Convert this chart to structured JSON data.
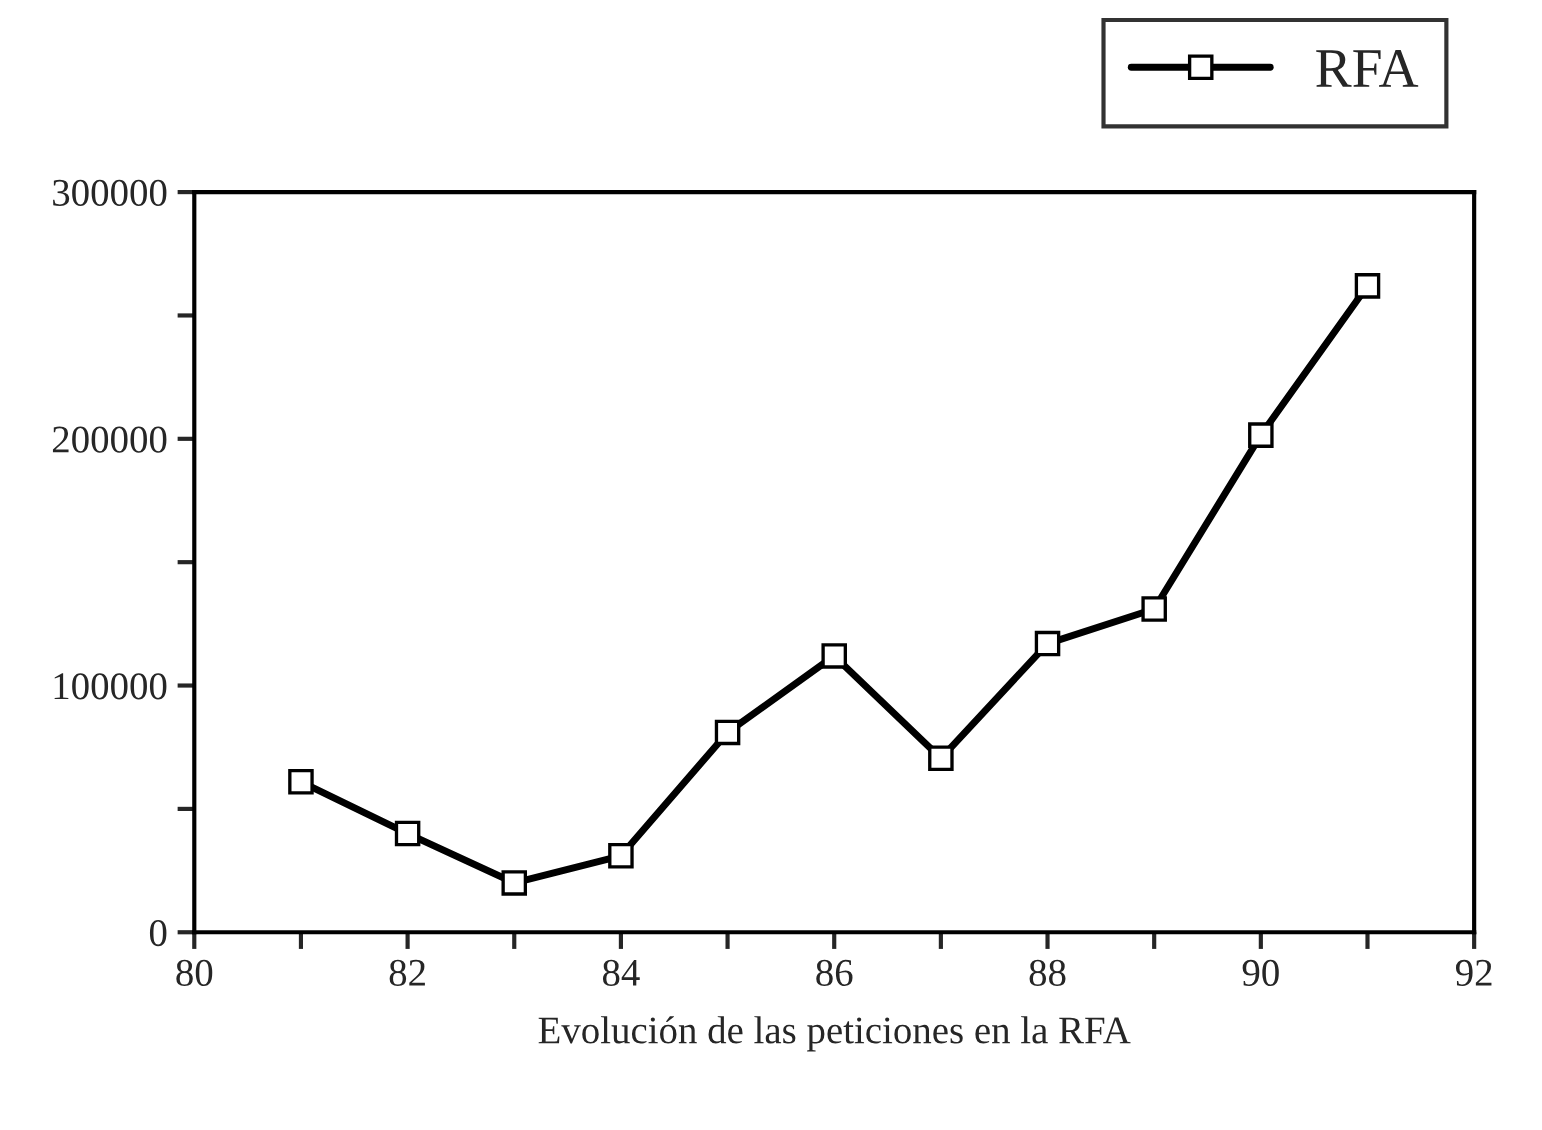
{
  "chart_data": {
    "type": "line",
    "xlabel": "Evolución de las peticiones en la RFA",
    "x": [
      81,
      82,
      83,
      84,
      85,
      86,
      87,
      88,
      89,
      90,
      91
    ],
    "series": [
      {
        "name": "RFA",
        "color": "#000000",
        "values": [
          61000,
          40000,
          20000,
          31000,
          81000,
          112000,
          70500,
          117000,
          131000,
          201500,
          262000
        ]
      }
    ],
    "xlim": [
      80,
      92
    ],
    "xticks": [
      80,
      {
        "value": 81,
        "label": null
      },
      82,
      {
        "value": 83,
        "label": null
      },
      84,
      {
        "value": 85,
        "label": null
      },
      86,
      {
        "value": 87,
        "label": null
      },
      88,
      {
        "value": 89,
        "label": null
      },
      90,
      {
        "value": 91,
        "label": null
      },
      92
    ],
    "ylim": [
      0,
      300000
    ],
    "yticks": [
      0,
      {
        "value": 50000,
        "label": null
      },
      100000,
      {
        "value": 150000,
        "label": null
      },
      200000,
      {
        "value": 250000,
        "label": null
      },
      300000
    ],
    "marker": "square",
    "line_style": "solid",
    "grid": false,
    "legend": "top right"
  }
}
